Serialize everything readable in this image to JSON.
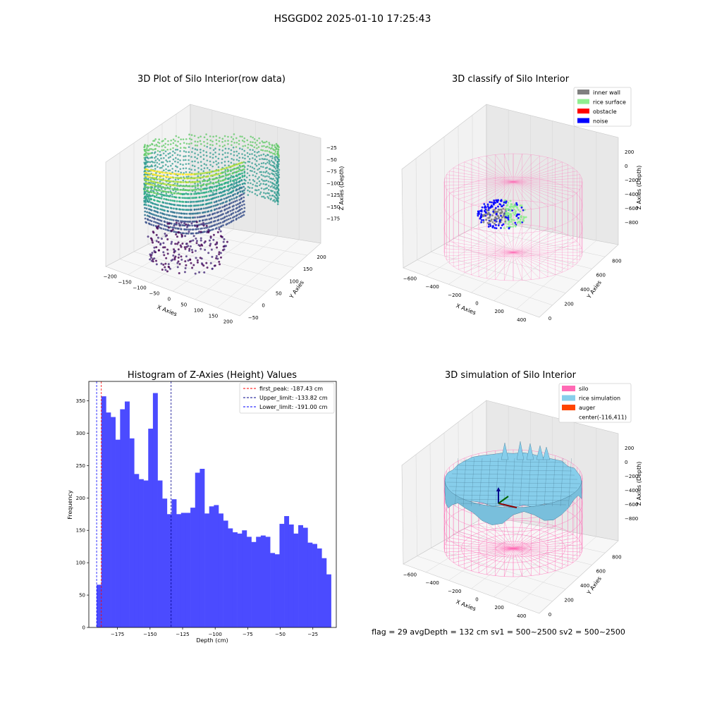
{
  "figure": {
    "suptitle": "HSGGD02 2025-01-10 17:25:43",
    "status_line": "flag = 29  avgDepth = 132 cm  sv1 = 500~2500  sv2 = 500~2500"
  },
  "chart_data": [
    {
      "type": "scatter3d",
      "title": "3D Plot of Silo Interior(row data)",
      "xlabel": "X Axies",
      "ylabel": "Y Axies",
      "zlabel": "Z Axies (Depth)",
      "xticks": [
        "−200",
        "−150",
        "−100",
        "−50",
        "0",
        "50",
        "100",
        "150",
        "200"
      ],
      "yticks": [
        "−50",
        "0",
        "50",
        "100",
        "150",
        "200"
      ],
      "zticks": [
        "−25",
        "−50",
        "−75",
        "−100",
        "−125",
        "−150",
        "−175"
      ],
      "xlim": [
        -200,
        200
      ],
      "ylim": [
        -50,
        200
      ],
      "zlim": [
        -190,
        -10
      ],
      "colormap": "viridis"
    },
    {
      "type": "scatter3d",
      "title": "3D classify of Silo Interior",
      "xlabel": "X Axies",
      "ylabel": "Y Axies",
      "zlabel": "Z Axies (Depth)",
      "xticks": [
        "−600",
        "−400",
        "−200",
        "0",
        "200",
        "400"
      ],
      "yticks": [
        "0",
        "200",
        "400",
        "600",
        "800"
      ],
      "zticks": [
        "200",
        "0",
        "−200",
        "−400",
        "−600",
        "−800"
      ],
      "legend": [
        {
          "label": "inner wall",
          "color": "#808080"
        },
        {
          "label": "rice surface",
          "color": "#90ee90"
        },
        {
          "label": "obstacle",
          "color": "#ff0000"
        },
        {
          "label": "noise",
          "color": "#0000ff"
        }
      ],
      "legend_position": "top-right",
      "silo_color": "#ff69b4"
    },
    {
      "type": "bar",
      "title": "Histogram of Z-Axies (Height) Values",
      "xlabel": "Depth (cm)",
      "ylabel": "Frequency",
      "xlim": [
        -197,
        -7
      ],
      "ylim": [
        0,
        380
      ],
      "xticks": [
        -175,
        -150,
        -125,
        -100,
        -75,
        -50,
        -25
      ],
      "xtick_labels": [
        "−175",
        "−150",
        "−125",
        "−100",
        "−75",
        "−50",
        "−25"
      ],
      "yticks": [
        0,
        50,
        100,
        150,
        200,
        250,
        300,
        350
      ],
      "bin_start": -191.0,
      "bin_width": 3.6,
      "values": [
        66,
        357,
        332,
        325,
        290,
        337,
        349,
        292,
        237,
        229,
        227,
        307,
        362,
        227,
        199,
        175,
        198,
        175,
        177,
        177,
        185,
        239,
        245,
        176,
        187,
        189,
        176,
        165,
        153,
        147,
        145,
        150,
        140,
        132,
        140,
        142,
        140,
        115,
        113,
        160,
        172,
        159,
        145,
        158,
        154,
        131,
        129,
        122,
        107,
        82
      ],
      "bar_color": "#4b4bff",
      "legend": [
        {
          "label": "first_peak: -187.43 cm",
          "color": "#ff0000"
        },
        {
          "label": "Upper_limit: -133.82 cm",
          "color": "#00008b"
        },
        {
          "label": "Lower_limit: -191.00 cm",
          "color": "#0000ff"
        }
      ],
      "vlines": [
        -187.43,
        -133.82,
        -191.0
      ],
      "legend_position": "top-right"
    },
    {
      "type": "surface3d",
      "title": "3D simulation of Silo Interior",
      "xlabel": "X Axies",
      "ylabel": "Y Axies",
      "zlabel": "Z Axies (Depth)",
      "xticks": [
        "−600",
        "−400",
        "−200",
        "0",
        "200",
        "400"
      ],
      "yticks": [
        "0",
        "200",
        "400",
        "600",
        "800"
      ],
      "zticks": [
        "200",
        "0",
        "−200",
        "−400",
        "−600",
        "−800"
      ],
      "legend": [
        {
          "label": "silo",
          "color": "#ff69b4"
        },
        {
          "label": "rice simulation",
          "color": "#87ceeb"
        },
        {
          "label": "auger",
          "color": "#ff4500"
        },
        {
          "label": "center(-116,411)",
          "color": ""
        }
      ],
      "legend_position": "top-right"
    }
  ]
}
